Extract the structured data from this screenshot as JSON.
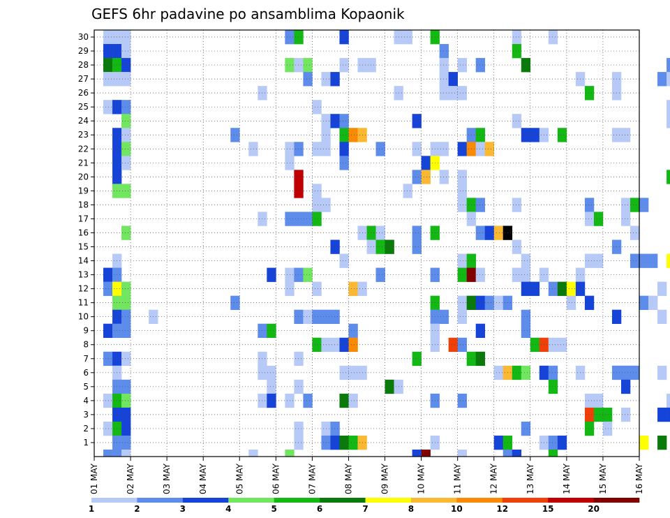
{
  "chart_data": {
    "type": "heatmap",
    "title": "GEFS 6hr padavine po ansamblima Kopaonik",
    "xlabel": "",
    "ylabel": "",
    "x_start": "01 MAY",
    "x_end": "16 MAY",
    "x_step_hours": 6,
    "x_tick_labels": [
      "01 MAY",
      "02 MAY",
      "03 MAY",
      "04 MAY",
      "05 MAY",
      "06 MAY",
      "07 MAY",
      "08 MAY",
      "09 MAY",
      "10 MAY",
      "11 MAY",
      "12 MAY",
      "13 MAY",
      "14 MAY",
      "15 MAY",
      "16 MAY"
    ],
    "y_tick_labels": [
      "1",
      "2",
      "3",
      "4",
      "5",
      "6",
      "7",
      "8",
      "9",
      "10",
      "11",
      "12",
      "13",
      "14",
      "15",
      "16",
      "17",
      "18",
      "19",
      "20",
      "21",
      "22",
      "23",
      "24",
      "25",
      "26",
      "27",
      "28",
      "29",
      "30"
    ],
    "ylim": [
      0,
      30
    ],
    "grid": true,
    "colorbar": {
      "position": "bottom",
      "labels": [
        "1",
        "2",
        "3",
        "4",
        "5",
        "6",
        "7",
        "8",
        "10",
        "12",
        "15",
        "20"
      ],
      "colors": [
        "#b6c9f7",
        "#5d8ceb",
        "#1744d8",
        "#72e660",
        "#14b814",
        "#0a7a0a",
        "#ffff00",
        "#fbb832",
        "#f88a06",
        "#f0400a",
        "#c00000",
        "#800000"
      ]
    },
    "cells": [
      [
        1,
        30,
        1
      ],
      [
        1,
        29,
        3
      ],
      [
        1,
        28,
        6
      ],
      [
        1,
        27,
        1
      ],
      [
        1,
        25,
        1
      ],
      [
        1,
        13,
        3
      ],
      [
        1,
        12,
        2
      ],
      [
        1,
        9,
        3
      ],
      [
        1,
        7,
        2
      ],
      [
        1,
        4,
        1
      ],
      [
        1,
        2,
        1
      ],
      [
        1,
        0,
        2
      ],
      [
        2,
        30,
        1
      ],
      [
        2,
        29,
        3
      ],
      [
        2,
        28,
        5
      ],
      [
        2,
        27,
        1
      ],
      [
        2,
        25,
        3
      ],
      [
        2,
        23,
        3
      ],
      [
        2,
        22,
        3
      ],
      [
        2,
        21,
        3
      ],
      [
        2,
        20,
        3
      ],
      [
        2,
        19,
        4
      ],
      [
        2,
        14,
        1
      ],
      [
        2,
        13,
        2
      ],
      [
        2,
        12,
        7
      ],
      [
        2,
        11,
        4
      ],
      [
        2,
        10,
        3
      ],
      [
        2,
        9,
        2
      ],
      [
        2,
        7,
        3
      ],
      [
        2,
        6,
        1
      ],
      [
        2,
        5,
        2
      ],
      [
        2,
        4,
        5
      ],
      [
        2,
        3,
        3
      ],
      [
        2,
        2,
        5
      ],
      [
        2,
        1,
        2
      ],
      [
        2,
        0,
        2
      ],
      [
        3,
        30,
        1
      ],
      [
        3,
        29,
        1
      ],
      [
        3,
        28,
        3
      ],
      [
        3,
        27,
        1
      ],
      [
        3,
        25,
        2
      ],
      [
        3,
        24,
        4
      ],
      [
        3,
        23,
        1
      ],
      [
        3,
        22,
        4
      ],
      [
        3,
        21,
        1
      ],
      [
        3,
        19,
        4
      ],
      [
        3,
        16,
        4
      ],
      [
        3,
        12,
        4
      ],
      [
        3,
        11,
        4
      ],
      [
        3,
        10,
        2
      ],
      [
        3,
        9,
        2
      ],
      [
        3,
        7,
        1
      ],
      [
        3,
        5,
        2
      ],
      [
        3,
        4,
        4
      ],
      [
        3,
        3,
        3
      ],
      [
        3,
        2,
        3
      ],
      [
        3,
        1,
        2
      ],
      [
        3,
        0,
        1
      ],
      [
        6,
        10,
        1
      ],
      [
        15,
        23,
        2
      ],
      [
        15,
        11,
        2
      ],
      [
        17,
        22,
        1
      ],
      [
        17,
        0,
        1
      ],
      [
        18,
        26,
        1
      ],
      [
        18,
        17,
        1
      ],
      [
        18,
        9,
        2
      ],
      [
        18,
        7,
        1
      ],
      [
        18,
        6,
        1
      ],
      [
        18,
        4,
        1
      ],
      [
        19,
        13,
        3
      ],
      [
        19,
        9,
        5
      ],
      [
        19,
        6,
        1
      ],
      [
        19,
        5,
        1
      ],
      [
        19,
        4,
        3
      ],
      [
        21,
        30,
        2
      ],
      [
        21,
        28,
        4
      ],
      [
        21,
        22,
        1
      ],
      [
        21,
        21,
        1
      ],
      [
        21,
        17,
        2
      ],
      [
        21,
        13,
        1
      ],
      [
        21,
        12,
        1
      ],
      [
        21,
        4,
        1
      ],
      [
        21,
        0,
        4
      ],
      [
        22,
        30,
        5
      ],
      [
        22,
        28,
        1
      ],
      [
        22,
        22,
        2
      ],
      [
        22,
        20,
        11
      ],
      [
        22,
        19,
        11
      ],
      [
        22,
        17,
        2
      ],
      [
        22,
        13,
        2
      ],
      [
        22,
        10,
        2
      ],
      [
        22,
        7,
        1
      ],
      [
        22,
        5,
        1
      ],
      [
        22,
        2,
        1
      ],
      [
        22,
        1,
        1
      ],
      [
        23,
        28,
        4
      ],
      [
        23,
        27,
        2
      ],
      [
        23,
        17,
        2
      ],
      [
        23,
        13,
        4
      ],
      [
        23,
        10,
        1
      ],
      [
        23,
        4,
        2
      ],
      [
        24,
        25,
        1
      ],
      [
        24,
        22,
        1
      ],
      [
        24,
        19,
        1
      ],
      [
        24,
        18,
        1
      ],
      [
        24,
        17,
        5
      ],
      [
        24,
        12,
        1
      ],
      [
        24,
        10,
        2
      ],
      [
        24,
        8,
        5
      ],
      [
        25,
        27,
        1
      ],
      [
        25,
        24,
        1
      ],
      [
        25,
        23,
        1
      ],
      [
        25,
        22,
        1
      ],
      [
        25,
        18,
        1
      ],
      [
        25,
        10,
        2
      ],
      [
        25,
        8,
        1
      ],
      [
        25,
        2,
        1
      ],
      [
        25,
        1,
        2
      ],
      [
        26,
        27,
        3
      ],
      [
        26,
        24,
        3
      ],
      [
        26,
        15,
        3
      ],
      [
        26,
        10,
        2
      ],
      [
        26,
        8,
        1
      ],
      [
        26,
        2,
        2
      ],
      [
        26,
        1,
        3
      ],
      [
        27,
        30,
        3
      ],
      [
        27,
        28,
        1
      ],
      [
        27,
        24,
        2
      ],
      [
        27,
        23,
        5
      ],
      [
        27,
        22,
        3
      ],
      [
        27,
        21,
        2
      ],
      [
        27,
        14,
        1
      ],
      [
        27,
        8,
        3
      ],
      [
        27,
        6,
        1
      ],
      [
        27,
        4,
        6
      ],
      [
        27,
        1,
        6
      ],
      [
        28,
        23,
        9
      ],
      [
        28,
        12,
        8
      ],
      [
        28,
        9,
        2
      ],
      [
        28,
        8,
        9
      ],
      [
        28,
        6,
        1
      ],
      [
        28,
        4,
        1
      ],
      [
        28,
        1,
        5
      ],
      [
        29,
        28,
        1
      ],
      [
        29,
        23,
        8
      ],
      [
        29,
        16,
        1
      ],
      [
        29,
        12,
        1
      ],
      [
        29,
        6,
        1
      ],
      [
        29,
        1,
        8
      ],
      [
        30,
        28,
        1
      ],
      [
        30,
        16,
        5
      ],
      [
        30,
        15,
        1
      ],
      [
        31,
        22,
        2
      ],
      [
        31,
        16,
        1
      ],
      [
        31,
        15,
        5
      ],
      [
        31,
        13,
        2
      ],
      [
        32,
        15,
        6
      ],
      [
        32,
        5,
        6
      ],
      [
        33,
        30,
        1
      ],
      [
        33,
        26,
        1
      ],
      [
        33,
        5,
        1
      ],
      [
        34,
        30,
        1
      ],
      [
        34,
        19,
        1
      ],
      [
        35,
        24,
        3
      ],
      [
        35,
        22,
        1
      ],
      [
        35,
        20,
        2
      ],
      [
        35,
        16,
        2
      ],
      [
        35,
        15,
        2
      ],
      [
        35,
        7,
        5
      ],
      [
        35,
        0,
        3
      ],
      [
        36,
        21,
        3
      ],
      [
        36,
        20,
        8
      ],
      [
        36,
        0,
        12
      ],
      [
        37,
        30,
        5
      ],
      [
        37,
        22,
        1
      ],
      [
        37,
        21,
        7
      ],
      [
        37,
        16,
        5
      ],
      [
        37,
        13,
        2
      ],
      [
        37,
        11,
        5
      ],
      [
        37,
        10,
        2
      ],
      [
        37,
        9,
        1
      ],
      [
        37,
        8,
        1
      ],
      [
        37,
        4,
        2
      ],
      [
        37,
        1,
        1
      ],
      [
        38,
        29,
        2
      ],
      [
        38,
        28,
        1
      ],
      [
        38,
        27,
        1
      ],
      [
        38,
        26,
        1
      ],
      [
        38,
        22,
        1
      ],
      [
        38,
        20,
        1
      ],
      [
        38,
        10,
        2
      ],
      [
        39,
        27,
        3
      ],
      [
        39,
        26,
        1
      ],
      [
        39,
        8,
        10
      ],
      [
        40,
        28,
        1
      ],
      [
        40,
        26,
        1
      ],
      [
        40,
        22,
        3
      ],
      [
        40,
        20,
        1
      ],
      [
        40,
        19,
        1
      ],
      [
        40,
        18,
        1
      ],
      [
        40,
        14,
        1
      ],
      [
        40,
        13,
        5
      ],
      [
        40,
        11,
        1
      ],
      [
        40,
        10,
        1
      ],
      [
        40,
        8,
        2
      ],
      [
        40,
        4,
        2
      ],
      [
        40,
        0,
        1
      ],
      [
        41,
        23,
        2
      ],
      [
        41,
        22,
        9
      ],
      [
        41,
        18,
        5
      ],
      [
        41,
        17,
        1
      ],
      [
        41,
        14,
        5
      ],
      [
        41,
        13,
        12
      ],
      [
        41,
        11,
        6
      ],
      [
        41,
        7,
        5
      ],
      [
        42,
        28,
        2
      ],
      [
        42,
        23,
        5
      ],
      [
        42,
        22,
        1
      ],
      [
        42,
        18,
        2
      ],
      [
        42,
        16,
        2
      ],
      [
        42,
        13,
        1
      ],
      [
        42,
        11,
        3
      ],
      [
        42,
        9,
        3
      ],
      [
        42,
        7,
        6
      ],
      [
        43,
        22,
        8
      ],
      [
        43,
        16,
        3
      ],
      [
        43,
        11,
        2
      ],
      [
        44,
        16,
        8
      ],
      [
        44,
        11,
        1
      ],
      [
        44,
        6,
        1
      ],
      [
        44,
        1,
        3
      ],
      [
        45,
        16,
        14
      ],
      [
        45,
        11,
        2
      ],
      [
        45,
        6,
        8
      ],
      [
        45,
        1,
        5
      ],
      [
        45,
        0,
        2
      ],
      [
        46,
        30,
        1
      ],
      [
        46,
        29,
        5
      ],
      [
        46,
        24,
        1
      ],
      [
        46,
        18,
        1
      ],
      [
        46,
        15,
        1
      ],
      [
        46,
        13,
        1
      ],
      [
        46,
        6,
        5
      ],
      [
        46,
        0,
        3
      ],
      [
        47,
        28,
        6
      ],
      [
        47,
        23,
        3
      ],
      [
        47,
        14,
        1
      ],
      [
        47,
        13,
        1
      ],
      [
        47,
        12,
        3
      ],
      [
        47,
        10,
        2
      ],
      [
        47,
        9,
        2
      ],
      [
        47,
        6,
        4
      ],
      [
        47,
        2,
        2
      ],
      [
        48,
        23,
        3
      ],
      [
        48,
        12,
        3
      ],
      [
        48,
        8,
        5
      ],
      [
        49,
        23,
        1
      ],
      [
        49,
        13,
        1
      ],
      [
        49,
        8,
        10
      ],
      [
        49,
        6,
        3
      ],
      [
        49,
        1,
        1
      ],
      [
        50,
        30,
        1
      ],
      [
        50,
        12,
        2
      ],
      [
        50,
        8,
        1
      ],
      [
        50,
        6,
        2
      ],
      [
        50,
        5,
        5
      ],
      [
        50,
        1,
        2
      ],
      [
        50,
        0,
        5
      ],
      [
        51,
        23,
        5
      ],
      [
        51,
        12,
        6
      ],
      [
        51,
        8,
        1
      ],
      [
        51,
        1,
        3
      ],
      [
        52,
        12,
        7
      ],
      [
        52,
        11,
        1
      ],
      [
        53,
        27,
        1
      ],
      [
        53,
        13,
        1
      ],
      [
        53,
        12,
        3
      ],
      [
        53,
        6,
        1
      ],
      [
        54,
        26,
        5
      ],
      [
        54,
        18,
        2
      ],
      [
        54,
        17,
        1
      ],
      [
        54,
        14,
        1
      ],
      [
        54,
        11,
        3
      ],
      [
        54,
        4,
        1
      ],
      [
        54,
        3,
        10
      ],
      [
        54,
        2,
        5
      ],
      [
        55,
        17,
        5
      ],
      [
        55,
        14,
        1
      ],
      [
        55,
        4,
        1
      ],
      [
        55,
        3,
        5
      ],
      [
        56,
        3,
        5
      ],
      [
        56,
        2,
        1
      ],
      [
        57,
        27,
        1
      ],
      [
        57,
        26,
        1
      ],
      [
        57,
        23,
        1
      ],
      [
        57,
        15,
        2
      ],
      [
        57,
        10,
        3
      ],
      [
        57,
        6,
        2
      ],
      [
        58,
        23,
        1
      ],
      [
        58,
        18,
        1
      ],
      [
        58,
        17,
        1
      ],
      [
        58,
        6,
        2
      ],
      [
        58,
        5,
        3
      ],
      [
        58,
        3,
        1
      ],
      [
        59,
        18,
        5
      ],
      [
        59,
        16,
        1
      ],
      [
        59,
        14,
        2
      ],
      [
        59,
        6,
        2
      ],
      [
        60,
        18,
        2
      ],
      [
        60,
        14,
        2
      ],
      [
        60,
        11,
        2
      ],
      [
        60,
        1,
        7
      ],
      [
        61,
        14,
        2
      ],
      [
        61,
        11,
        1
      ],
      [
        62,
        27,
        2
      ],
      [
        62,
        12,
        1
      ],
      [
        62,
        10,
        1
      ],
      [
        62,
        6,
        1
      ],
      [
        62,
        3,
        3
      ],
      [
        62,
        1,
        6
      ],
      [
        63,
        28,
        2
      ],
      [
        63,
        27,
        1
      ],
      [
        63,
        25,
        1
      ],
      [
        63,
        24,
        1
      ],
      [
        63,
        20,
        5
      ],
      [
        63,
        14,
        7
      ],
      [
        63,
        4,
        1
      ],
      [
        63,
        3,
        3
      ]
    ]
  }
}
